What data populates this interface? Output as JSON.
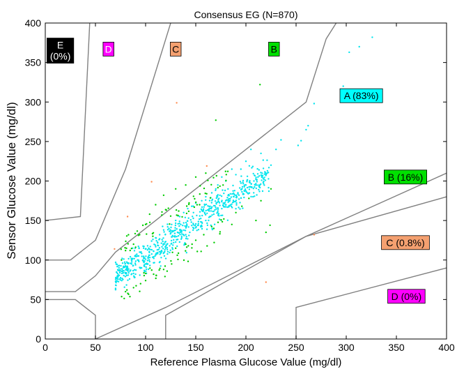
{
  "chart_data": {
    "type": "scatter",
    "title": "Consensus EG (N=870)",
    "xlabel": "Reference Plasma Glucose Value (mg/dl)",
    "ylabel": "Sensor Glucose Value (mg/dl)",
    "xlim": [
      0,
      400
    ],
    "ylim": [
      0,
      400
    ],
    "xticks": [
      "0",
      "50",
      "100",
      "150",
      "200",
      "250",
      "300",
      "350",
      "400"
    ],
    "yticks": [
      "0",
      "50",
      "100",
      "150",
      "200",
      "250",
      "300",
      "350",
      "400"
    ],
    "grid": false,
    "zone_boundaries": [
      [
        [
          0,
          50
        ],
        [
          30,
          50
        ],
        [
          50,
          30
        ],
        [
          50,
          0
        ]
      ],
      [
        [
          0,
          60
        ],
        [
          30,
          60
        ],
        [
          50,
          80
        ],
        [
          70,
          110
        ],
        [
          260,
          300
        ],
        [
          280,
          380
        ],
        [
          290,
          400
        ]
      ],
      [
        [
          0,
          100
        ],
        [
          25,
          100
        ],
        [
          50,
          125
        ],
        [
          80,
          215
        ],
        [
          125,
          400
        ]
      ],
      [
        [
          0,
          150
        ],
        [
          35,
          155
        ],
        [
          50,
          550
        ],
        [
          70,
          1000
        ]
      ],
      [
        [
          50,
          0
        ],
        [
          120,
          40
        ],
        [
          260,
          130
        ],
        [
          400,
          210
        ]
      ],
      [
        [
          120,
          0
        ],
        [
          120,
          30
        ],
        [
          260,
          130
        ],
        [
          400,
          180
        ]
      ],
      [
        [
          250,
          0
        ],
        [
          250,
          40
        ],
        [
          400,
          90
        ]
      ]
    ],
    "zone_labels": [
      {
        "text": "E\n(0%)",
        "x": 15,
        "y": 365,
        "bg": "#000000",
        "fg": "#ffffff"
      },
      {
        "text": "D",
        "x": 63,
        "y": 367,
        "bg": "#ff00ff",
        "fg": "#ffffff"
      },
      {
        "text": "C",
        "x": 130,
        "y": 367,
        "bg": "#f4a070",
        "fg": "#000000"
      },
      {
        "text": "B",
        "x": 228,
        "y": 367,
        "bg": "#00e000",
        "fg": "#000000"
      },
      {
        "text": "A (83%)",
        "x": 315,
        "y": 308,
        "bg": "#00ffff",
        "fg": "#000000"
      },
      {
        "text": "B (16%)",
        "x": 359,
        "y": 205,
        "bg": "#00e000",
        "fg": "#000000"
      },
      {
        "text": "C (0.8%)",
        "x": 359,
        "y": 122,
        "bg": "#f4a070",
        "fg": "#000000"
      },
      {
        "text": "D (0%)",
        "x": 360,
        "y": 54,
        "bg": "#ff00ff",
        "fg": "#000000"
      }
    ],
    "series": [
      {
        "zone": "A",
        "color": "#00e5ee",
        "count": 722,
        "cluster": {
          "x_range": [
            70,
            250
          ],
          "slope": 0.85,
          "intercept": 20,
          "spread": 14
        },
        "points": [
          [
            326,
            382
          ],
          [
            313,
            370
          ],
          [
            303,
            363
          ],
          [
            297,
            320
          ],
          [
            268,
            298
          ],
          [
            262,
            270
          ],
          [
            260,
            265
          ],
          [
            255,
            251
          ],
          [
            252,
            245
          ],
          [
            235,
            252
          ],
          [
            230,
            240
          ],
          [
            225,
            220
          ],
          [
            215,
            235
          ],
          [
            205,
            240
          ],
          [
            200,
            225
          ],
          [
            195,
            215
          ],
          [
            190,
            208
          ],
          [
            186,
            215
          ],
          [
            180,
            200
          ],
          [
            176,
            205
          ],
          [
            172,
            195
          ],
          [
            170,
            190
          ],
          [
            166,
            185
          ],
          [
            160,
            180
          ],
          [
            156,
            175
          ],
          [
            150,
            172
          ],
          [
            146,
            168
          ],
          [
            142,
            165
          ],
          [
            138,
            160
          ],
          [
            134,
            155
          ],
          [
            130,
            150
          ],
          [
            126,
            145
          ],
          [
            122,
            142
          ],
          [
            118,
            138
          ],
          [
            114,
            132
          ],
          [
            110,
            128
          ],
          [
            106,
            124
          ],
          [
            102,
            118
          ],
          [
            98,
            115
          ],
          [
            94,
            110
          ],
          [
            90,
            106
          ],
          [
            86,
            100
          ],
          [
            82,
            96
          ],
          [
            78,
            92
          ],
          [
            74,
            86
          ],
          [
            72,
            80
          ],
          [
            84,
            76
          ],
          [
            90,
            82
          ],
          [
            96,
            90
          ],
          [
            100,
            95
          ],
          [
            104,
            98
          ],
          [
            108,
            104
          ],
          [
            112,
            108
          ],
          [
            116,
            112
          ],
          [
            120,
            115
          ],
          [
            124,
            118
          ],
          [
            128,
            122
          ],
          [
            132,
            126
          ],
          [
            136,
            128
          ],
          [
            140,
            132
          ],
          [
            144,
            135
          ],
          [
            148,
            140
          ],
          [
            152,
            144
          ],
          [
            156,
            148
          ],
          [
            160,
            150
          ],
          [
            164,
            155
          ],
          [
            168,
            158
          ],
          [
            172,
            162
          ],
          [
            176,
            165
          ],
          [
            180,
            170
          ],
          [
            184,
            175
          ],
          [
            188,
            180
          ],
          [
            192,
            185
          ],
          [
            196,
            190
          ],
          [
            200,
            195
          ],
          [
            204,
            198
          ],
          [
            208,
            200
          ],
          [
            212,
            205
          ],
          [
            220,
            208
          ]
        ]
      },
      {
        "zone": "B",
        "color": "#00cc00",
        "count": 139,
        "points": [
          [
            214,
            322
          ],
          [
            170,
            277
          ],
          [
            225,
            190
          ],
          [
            215,
            175
          ],
          [
            203,
            178
          ],
          [
            196,
            168
          ],
          [
            190,
            160
          ],
          [
            178,
            152
          ],
          [
            168,
            140
          ],
          [
            158,
            132
          ],
          [
            150,
            125
          ],
          [
            140,
            120
          ],
          [
            130,
            115
          ],
          [
            126,
            95
          ],
          [
            118,
            88
          ],
          [
            108,
            82
          ],
          [
            100,
            74
          ],
          [
            95,
            70
          ],
          [
            88,
            65
          ],
          [
            80,
            60
          ],
          [
            76,
            100
          ],
          [
            80,
            112
          ],
          [
            88,
            120
          ],
          [
            94,
            132
          ],
          [
            100,
            145
          ],
          [
            104,
            158
          ],
          [
            110,
            170
          ],
          [
            118,
            182
          ],
          [
            130,
            190
          ],
          [
            140,
            195
          ],
          [
            150,
            205
          ],
          [
            160,
            210
          ],
          [
            224,
            144
          ],
          [
            220,
            135
          ],
          [
            210,
            150
          ],
          [
            186,
            145
          ]
        ]
      },
      {
        "zone": "C",
        "color": "#ff8c50",
        "count": 7,
        "points": [
          [
            131,
            299
          ],
          [
            82,
            155
          ],
          [
            69,
            114
          ],
          [
            220,
            72
          ],
          [
            268,
            132
          ],
          [
            106,
            199
          ],
          [
            161,
            219
          ]
        ]
      }
    ]
  }
}
